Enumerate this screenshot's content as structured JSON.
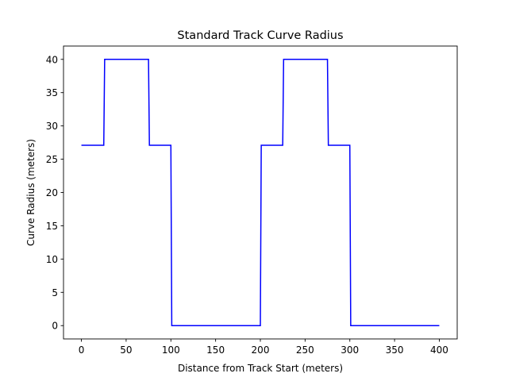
{
  "chart_data": {
    "type": "line",
    "title": "Standard Track Curve Radius",
    "xlabel": "Distance from Track Start (meters)",
    "ylabel": "Curve Radius (meters)",
    "xlim": [
      -20,
      420
    ],
    "ylim": [
      -2,
      42
    ],
    "xticks": [
      0,
      50,
      100,
      150,
      200,
      250,
      300,
      350,
      400
    ],
    "yticks": [
      0,
      5,
      10,
      15,
      20,
      25,
      30,
      35,
      40
    ],
    "grid": false,
    "legend": "none",
    "series": [
      {
        "color": "#0000ff",
        "x": [
          0,
          25,
          26,
          75,
          76,
          100,
          101,
          200,
          201,
          225,
          226,
          275,
          276,
          300,
          301,
          400
        ],
        "y": [
          27.1,
          27.1,
          40,
          40,
          27.1,
          27.1,
          0,
          0,
          27.1,
          27.1,
          40,
          40,
          27.1,
          27.1,
          0,
          0
        ]
      }
    ]
  }
}
